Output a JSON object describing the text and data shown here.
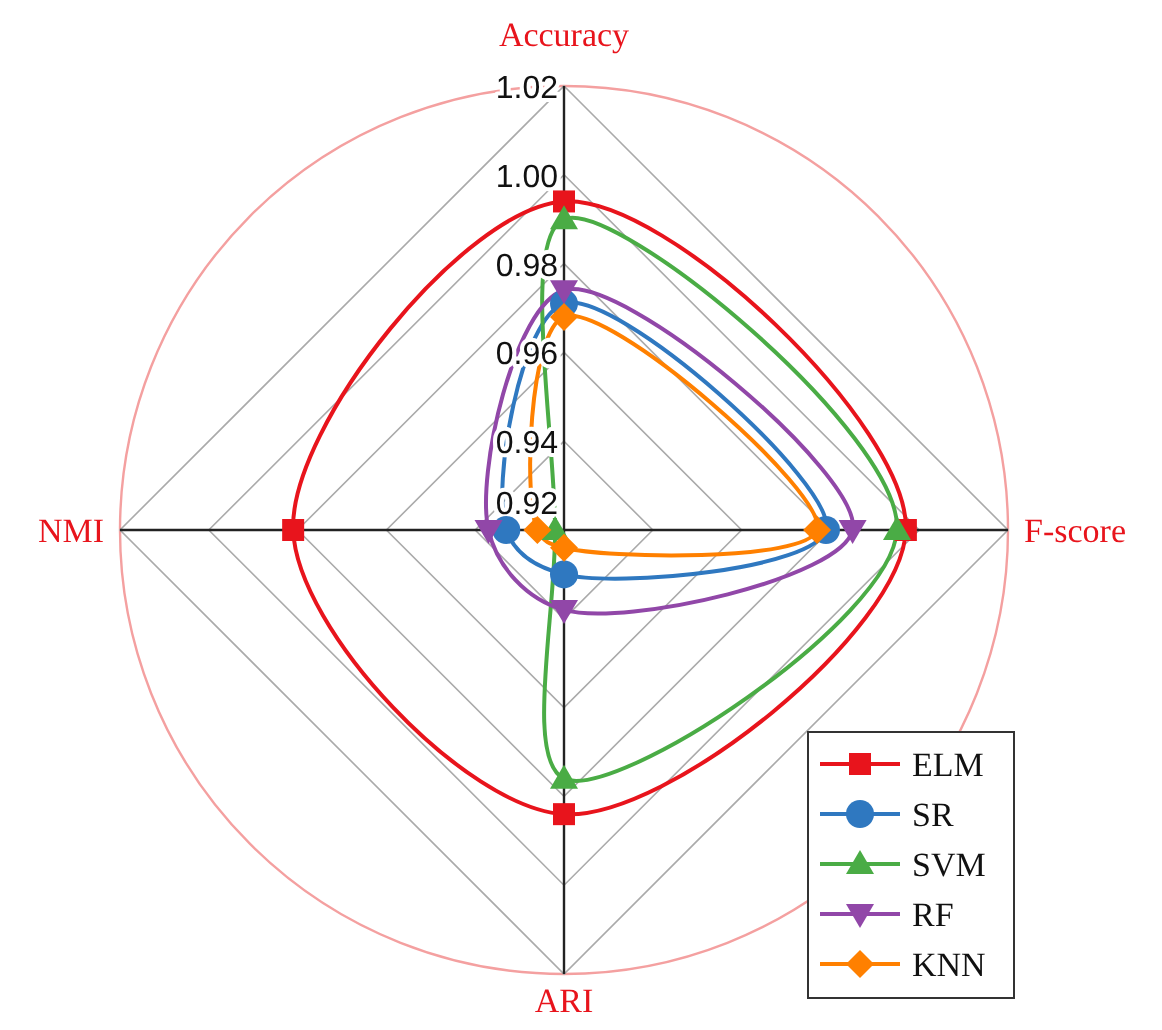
{
  "chart_data": {
    "type": "radar",
    "categories": [
      "Accuracy",
      "F-score",
      "ARI",
      "NMI"
    ],
    "ylim": [
      0.92,
      1.02
    ],
    "yticks": [
      0.92,
      0.94,
      0.96,
      0.98,
      "1.00",
      1.02
    ],
    "grid": true,
    "legend": "bottom right",
    "series": [
      {
        "name": "ELM",
        "color": "#e8141c",
        "marker": "square",
        "values": [
          0.994,
          0.997,
          0.984,
          0.981
        ]
      },
      {
        "name": "SR",
        "color": "#2f78c0",
        "marker": "circle",
        "values": [
          0.971,
          0.979,
          0.93,
          0.933
        ]
      },
      {
        "name": "SVM",
        "color": "#4aac45",
        "marker": "triangle",
        "values": [
          0.99,
          0.995,
          0.976,
          0.922
        ]
      },
      {
        "name": "RF",
        "color": "#9147a8",
        "marker": "triangle-down",
        "values": [
          0.974,
          0.985,
          0.938,
          0.937
        ]
      },
      {
        "name": "KNN",
        "color": "#ff8000",
        "marker": "diamond",
        "values": [
          0.968,
          0.977,
          0.924,
          0.926
        ]
      }
    ]
  }
}
